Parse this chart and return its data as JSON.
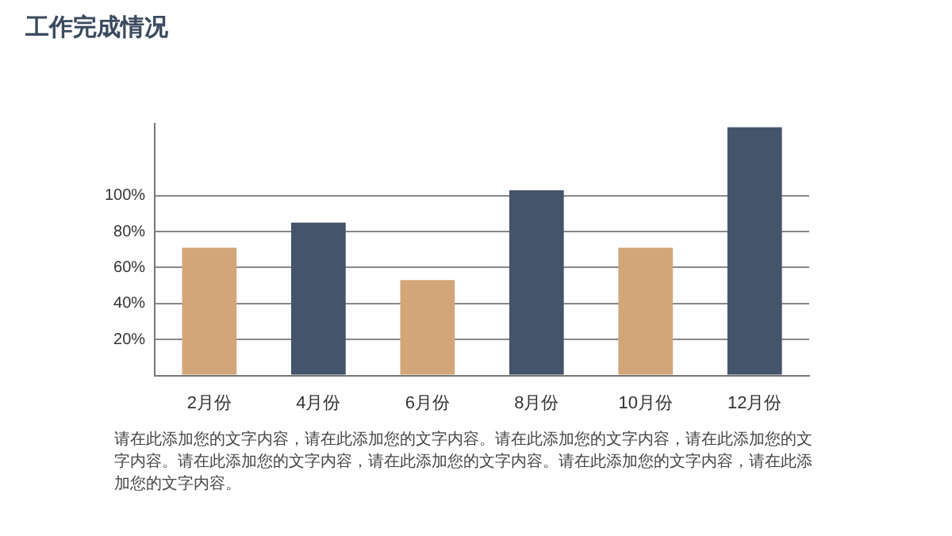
{
  "chart_data": {
    "type": "bar",
    "title": "工作完成情况",
    "categories": [
      "2月份",
      "4月份",
      "6月份",
      "8月份",
      "10月份",
      "12月份"
    ],
    "values": [
      71,
      85,
      53,
      103,
      71,
      138
    ],
    "colors": [
      "#d2a679",
      "#44546a",
      "#d2a679",
      "#44546a",
      "#d2a679",
      "#44546a"
    ],
    "ylim": [
      0,
      140
    ],
    "yticks": [
      {
        "value": 0,
        "label": null
      },
      {
        "value": 20,
        "label": "20%"
      },
      {
        "value": 40,
        "label": "40%"
      },
      {
        "value": 60,
        "label": "60%"
      },
      {
        "value": 80,
        "label": "80%"
      },
      {
        "value": 100,
        "label": "100%"
      }
    ],
    "grid": "y",
    "legend": false,
    "annotations": [
      "请在此添加您的文字内容，请在此添加您的文字内容。请在此添加您的文字内容，请在此添加您的文字内容。请在此添加您的文字内容，请在此添加您的文字内容。请在此添加您的文字内容，请在此添加您的文字内容。"
    ]
  }
}
